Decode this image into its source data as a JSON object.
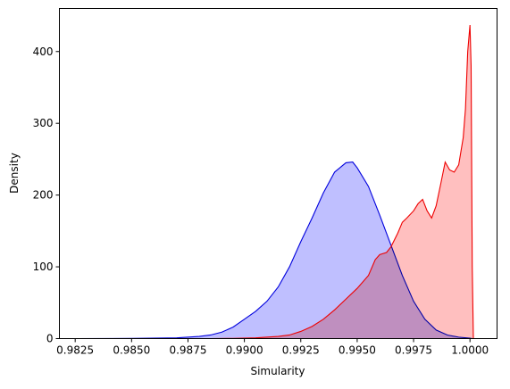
{
  "chart_data": {
    "type": "area",
    "title": "",
    "xlabel": "Simularity",
    "ylabel": "Density",
    "xlim": [
      0.9818,
      1.0012
    ],
    "ylim": [
      0,
      460
    ],
    "xticks": [
      0.9825,
      0.985,
      0.9875,
      0.99,
      0.9925,
      0.995,
      0.9975,
      1.0
    ],
    "xtick_labels": [
      "0.9825",
      "0.9850",
      "0.9875",
      "0.9900",
      "0.9925",
      "0.9950",
      "0.9975",
      "1.0000"
    ],
    "yticks": [
      0,
      100,
      200,
      300,
      400
    ],
    "ytick_labels": [
      "0",
      "100",
      "200",
      "300",
      "400"
    ],
    "grid": false,
    "legend": "none",
    "series": [
      {
        "color": "#0000dd",
        "fill": "#bcbcff",
        "points": [
          [
            0.9826,
            0
          ],
          [
            0.985,
            0.2
          ],
          [
            0.987,
            1
          ],
          [
            0.988,
            3
          ],
          [
            0.9885,
            5
          ],
          [
            0.989,
            9
          ],
          [
            0.9895,
            16
          ],
          [
            0.99,
            27
          ],
          [
            0.9905,
            38
          ],
          [
            0.991,
            52
          ],
          [
            0.9915,
            72
          ],
          [
            0.992,
            100
          ],
          [
            0.9925,
            135
          ],
          [
            0.993,
            168
          ],
          [
            0.9935,
            203
          ],
          [
            0.994,
            232
          ],
          [
            0.9945,
            245
          ],
          [
            0.9948,
            246
          ],
          [
            0.995,
            238
          ],
          [
            0.9955,
            212
          ],
          [
            0.996,
            172
          ],
          [
            0.9965,
            130
          ],
          [
            0.997,
            88
          ],
          [
            0.9975,
            52
          ],
          [
            0.998,
            27
          ],
          [
            0.9985,
            12
          ],
          [
            0.999,
            5
          ],
          [
            0.9995,
            2
          ],
          [
            1.0,
            0.5
          ],
          [
            1.0001,
            0
          ]
        ]
      },
      {
        "color": "#ee0000",
        "fill": "#ffbcbc",
        "points": [
          [
            0.9885,
            0
          ],
          [
            0.9895,
            0.3
          ],
          [
            0.9905,
            1
          ],
          [
            0.9915,
            3
          ],
          [
            0.992,
            5
          ],
          [
            0.9925,
            10
          ],
          [
            0.993,
            17
          ],
          [
            0.9935,
            27
          ],
          [
            0.994,
            40
          ],
          [
            0.9945,
            55
          ],
          [
            0.995,
            70
          ],
          [
            0.9955,
            88
          ],
          [
            0.9958,
            110
          ],
          [
            0.996,
            117
          ],
          [
            0.9963,
            120
          ],
          [
            0.9965,
            128
          ],
          [
            0.9968,
            147
          ],
          [
            0.997,
            162
          ],
          [
            0.9972,
            168
          ],
          [
            0.9975,
            178
          ],
          [
            0.9977,
            188
          ],
          [
            0.9979,
            194
          ],
          [
            0.9981,
            178
          ],
          [
            0.9983,
            168
          ],
          [
            0.9985,
            185
          ],
          [
            0.9987,
            215
          ],
          [
            0.9989,
            246
          ],
          [
            0.9991,
            235
          ],
          [
            0.9993,
            232
          ],
          [
            0.9995,
            242
          ],
          [
            0.9997,
            280
          ],
          [
            0.9998,
            320
          ],
          [
            0.9999,
            400
          ],
          [
            1.0,
            437
          ],
          [
            1.00005,
            380
          ],
          [
            1.0001,
            100
          ],
          [
            1.00015,
            0
          ]
        ]
      }
    ]
  }
}
